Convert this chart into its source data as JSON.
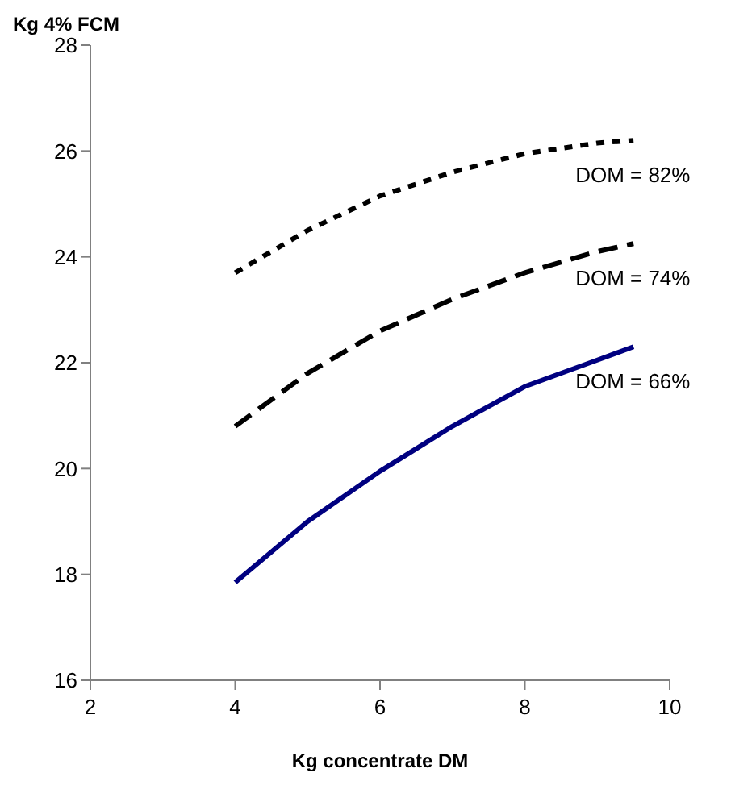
{
  "chart_data": {
    "type": "line",
    "xlabel": "Kg concentrate DM",
    "ylabel": "Kg 4% FCM",
    "x": [
      4,
      5,
      6,
      7,
      8,
      9,
      9.5
    ],
    "series": [
      {
        "name": "DOM = 82%",
        "color": "#000000",
        "line_style": "dotted",
        "values": [
          23.7,
          24.5,
          25.15,
          25.6,
          25.95,
          26.15,
          26.2
        ]
      },
      {
        "name": "DOM = 74%",
        "color": "#000000",
        "line_style": "dashed",
        "values": [
          20.8,
          21.8,
          22.6,
          23.2,
          23.7,
          24.1,
          24.25
        ]
      },
      {
        "name": "DOM = 66%",
        "color": "#000080",
        "line_style": "solid",
        "values": [
          17.85,
          19.0,
          19.95,
          20.8,
          21.55,
          22.05,
          22.3
        ]
      }
    ],
    "xlim": [
      2,
      10
    ],
    "xticks": [
      2,
      4,
      6,
      8,
      10
    ],
    "ylim": [
      16,
      28
    ],
    "yticks": [
      16,
      18,
      20,
      22,
      24,
      26,
      28
    ],
    "grid": false,
    "legend": false,
    "marker": "none"
  }
}
